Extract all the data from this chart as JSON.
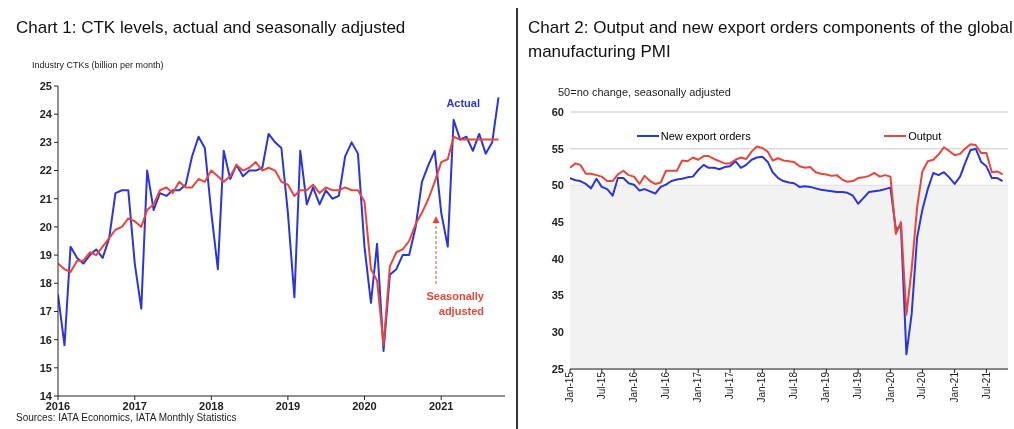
{
  "chart_data": [
    {
      "type": "line",
      "title": "Chart 1: CTK levels, actual and seasonally adjusted",
      "ylabel": "Industry CTKs (billion per month)",
      "x": [
        "2016-01",
        "2016-02",
        "2016-03",
        "2016-04",
        "2016-05",
        "2016-06",
        "2016-07",
        "2016-08",
        "2016-09",
        "2016-10",
        "2016-11",
        "2016-12",
        "2017-01",
        "2017-02",
        "2017-03",
        "2017-04",
        "2017-05",
        "2017-06",
        "2017-07",
        "2017-08",
        "2017-09",
        "2017-10",
        "2017-11",
        "2017-12",
        "2018-01",
        "2018-02",
        "2018-03",
        "2018-04",
        "2018-05",
        "2018-06",
        "2018-07",
        "2018-08",
        "2018-09",
        "2018-10",
        "2018-11",
        "2018-12",
        "2019-01",
        "2019-02",
        "2019-03",
        "2019-04",
        "2019-05",
        "2019-06",
        "2019-07",
        "2019-08",
        "2019-09",
        "2019-10",
        "2019-11",
        "2019-12",
        "2020-01",
        "2020-02",
        "2020-03",
        "2020-04",
        "2020-05",
        "2020-06",
        "2020-07",
        "2020-08",
        "2020-09",
        "2020-10",
        "2020-11",
        "2020-12",
        "2021-01",
        "2021-02",
        "2021-03",
        "2021-04",
        "2021-05",
        "2021-06",
        "2021-07",
        "2021-08",
        "2021-09",
        "2021-10"
      ],
      "series": [
        {
          "name": "Actual",
          "color": "#2b35d8",
          "values": [
            17.6,
            15.8,
            19.3,
            18.9,
            18.7,
            19.0,
            19.2,
            18.9,
            19.6,
            21.2,
            21.3,
            21.3,
            18.7,
            17.1,
            22.0,
            20.6,
            21.2,
            21.1,
            21.3,
            21.3,
            21.5,
            22.5,
            23.2,
            22.8,
            20.5,
            18.5,
            22.7,
            21.7,
            22.2,
            21.8,
            22.0,
            22.0,
            22.1,
            23.3,
            23.0,
            22.8,
            20.5,
            17.5,
            22.7,
            20.8,
            21.4,
            20.8,
            21.3,
            21.0,
            21.1,
            22.5,
            23.0,
            22.6,
            19.3,
            17.3,
            19.4,
            15.6,
            18.3,
            18.5,
            19.0,
            19.0,
            20.0,
            21.6,
            22.2,
            22.7,
            20.5,
            19.3,
            23.8,
            23.1,
            23.2,
            22.7,
            23.3,
            22.6,
            23.0,
            24.6
          ]
        },
        {
          "name": "Seasonally adjusted",
          "color": "#e8463a",
          "values": [
            18.7,
            18.5,
            18.4,
            18.8,
            18.8,
            19.1,
            19.0,
            19.3,
            19.6,
            19.9,
            20.0,
            20.3,
            20.2,
            20.0,
            20.6,
            20.8,
            21.3,
            21.4,
            21.2,
            21.6,
            21.4,
            21.4,
            21.7,
            21.6,
            22.0,
            21.8,
            21.6,
            21.8,
            22.2,
            22.0,
            22.1,
            22.3,
            22.0,
            22.1,
            22.0,
            21.6,
            21.5,
            21.1,
            21.3,
            21.3,
            21.5,
            21.2,
            21.4,
            21.3,
            21.3,
            21.4,
            21.3,
            21.3,
            20.9,
            18.5,
            18.1,
            15.8,
            18.6,
            19.1,
            19.2,
            19.5,
            20.1,
            20.5,
            21.0,
            21.6,
            22.3,
            22.4,
            23.2,
            23.1,
            23.1,
            23.1,
            23.1,
            23.1,
            23.1,
            23.1
          ]
        }
      ],
      "xlim": [
        "2016-01",
        "2021-11"
      ],
      "xticks": [
        {
          "value": "2016-01",
          "label": "2016"
        },
        {
          "value": "2017-01",
          "label": "2017"
        },
        {
          "value": "2018-01",
          "label": "2018"
        },
        {
          "value": "2019-01",
          "label": "2019"
        },
        {
          "value": "2020-01",
          "label": "2020"
        },
        {
          "value": "2021-01",
          "label": "2021"
        }
      ],
      "ylim": [
        14,
        25
      ],
      "yticks": [
        14,
        15,
        16,
        17,
        18,
        19,
        20,
        21,
        22,
        23,
        24,
        25
      ],
      "grid": false,
      "legend": false,
      "annotations": [
        "Sources: IATA Economics, IATA Monthly Statistics"
      ]
    },
    {
      "type": "line",
      "title": "Chart 2: Output and new export orders components of the global manufacturing PMI",
      "ylabel": "50=no change, seasonally adjusted",
      "x": [
        "2015-01",
        "2015-02",
        "2015-03",
        "2015-04",
        "2015-05",
        "2015-06",
        "2015-07",
        "2015-08",
        "2015-09",
        "2015-10",
        "2015-11",
        "2015-12",
        "2016-01",
        "2016-02",
        "2016-03",
        "2016-04",
        "2016-05",
        "2016-06",
        "2016-07",
        "2016-08",
        "2016-09",
        "2016-10",
        "2016-11",
        "2016-12",
        "2017-01",
        "2017-02",
        "2017-03",
        "2017-04",
        "2017-05",
        "2017-06",
        "2017-07",
        "2017-08",
        "2017-09",
        "2017-10",
        "2017-11",
        "2017-12",
        "2018-01",
        "2018-02",
        "2018-03",
        "2018-04",
        "2018-05",
        "2018-06",
        "2018-07",
        "2018-08",
        "2018-09",
        "2018-10",
        "2018-11",
        "2018-12",
        "2019-01",
        "2019-02",
        "2019-03",
        "2019-04",
        "2019-05",
        "2019-06",
        "2019-07",
        "2019-08",
        "2019-09",
        "2019-10",
        "2019-11",
        "2019-12",
        "2020-01",
        "2020-02",
        "2020-03",
        "2020-04",
        "2020-05",
        "2020-06",
        "2020-07",
        "2020-08",
        "2020-09",
        "2020-10",
        "2020-11",
        "2020-12",
        "2021-01",
        "2021-02",
        "2021-03",
        "2021-04",
        "2021-05",
        "2021-06",
        "2021-07",
        "2021-08",
        "2021-09",
        "2021-10"
      ],
      "series": [
        {
          "name": "New export orders",
          "color": "#2b35d8",
          "values": [
            51.0,
            50.7,
            50.6,
            50.2,
            49.6,
            50.9,
            49.8,
            49.5,
            48.6,
            51.0,
            51.0,
            50.3,
            50.1,
            49.3,
            49.5,
            49.2,
            48.9,
            49.8,
            50.1,
            50.6,
            50.8,
            50.9,
            51.1,
            51.2,
            52.1,
            52.8,
            52.4,
            52.4,
            52.2,
            52.5,
            52.6,
            53.3,
            52.4,
            52.8,
            53.5,
            53.8,
            53.9,
            53.2,
            51.8,
            51.0,
            50.6,
            50.4,
            50.3,
            49.8,
            49.9,
            49.8,
            49.6,
            49.4,
            49.3,
            49.2,
            49.1,
            49.1,
            49.0,
            48.6,
            47.5,
            48.3,
            49.1,
            49.2,
            49.3,
            49.5,
            49.7,
            44.0,
            44.5,
            27.0,
            32.5,
            42.9,
            46.7,
            49.5,
            51.7,
            51.4,
            51.8,
            51.1,
            50.2,
            51.2,
            53.0,
            54.8,
            55.0,
            53.2,
            52.6,
            51.0,
            51.0,
            50.6
          ]
        },
        {
          "name": "Output",
          "color": "#e8463a",
          "values": [
            52.4,
            53.0,
            52.8,
            51.6,
            51.6,
            51.4,
            51.2,
            50.6,
            50.6,
            51.5,
            52.0,
            51.4,
            51.2,
            50.2,
            51.3,
            50.6,
            50.2,
            50.4,
            52.0,
            52.0,
            52.0,
            53.4,
            53.3,
            53.8,
            53.5,
            54.0,
            54.0,
            53.6,
            53.3,
            53.0,
            53.0,
            53.5,
            53.8,
            53.6,
            54.6,
            55.3,
            55.1,
            54.6,
            53.4,
            53.7,
            53.4,
            53.3,
            53.2,
            52.6,
            52.4,
            52.5,
            51.8,
            51.6,
            51.5,
            51.3,
            51.4,
            50.8,
            50.5,
            50.6,
            51.0,
            51.1,
            51.3,
            51.7,
            51.2,
            51.4,
            51.2,
            43.4,
            45.0,
            32.4,
            38.6,
            47.0,
            51.9,
            53.3,
            53.5,
            54.2,
            55.2,
            54.7,
            54.1,
            54.3,
            55.0,
            55.6,
            55.5,
            54.4,
            54.4,
            51.8,
            51.9,
            51.5
          ]
        }
      ],
      "xlim": [
        "2015-01",
        "2021-11"
      ],
      "xticks": [
        {
          "value": "2015-01",
          "label": "Jan-15"
        },
        {
          "value": "2015-07",
          "label": "Jul-15"
        },
        {
          "value": "2016-01",
          "label": "Jan-16"
        },
        {
          "value": "2016-07",
          "label": "Jul-16"
        },
        {
          "value": "2017-01",
          "label": "Jan-17"
        },
        {
          "value": "2017-07",
          "label": "Jul-17"
        },
        {
          "value": "2018-01",
          "label": "Jan-18"
        },
        {
          "value": "2018-07",
          "label": "Jul-18"
        },
        {
          "value": "2019-01",
          "label": "Jan-19"
        },
        {
          "value": "2019-07",
          "label": "Jul-19"
        },
        {
          "value": "2020-01",
          "label": "Jan-20"
        },
        {
          "value": "2020-07",
          "label": "Jul-20"
        },
        {
          "value": "2021-01",
          "label": "Jan-21"
        },
        {
          "value": "2021-07",
          "label": "Jul-21"
        }
      ],
      "ylim": [
        25,
        60
      ],
      "yticks": [
        25,
        30,
        35,
        40,
        45,
        50,
        55,
        60
      ],
      "grid": "y",
      "legend": "top",
      "bands": [
        {
          "axis": "y",
          "from": 25,
          "to": 50,
          "color": "#f2f2f2"
        }
      ]
    }
  ]
}
